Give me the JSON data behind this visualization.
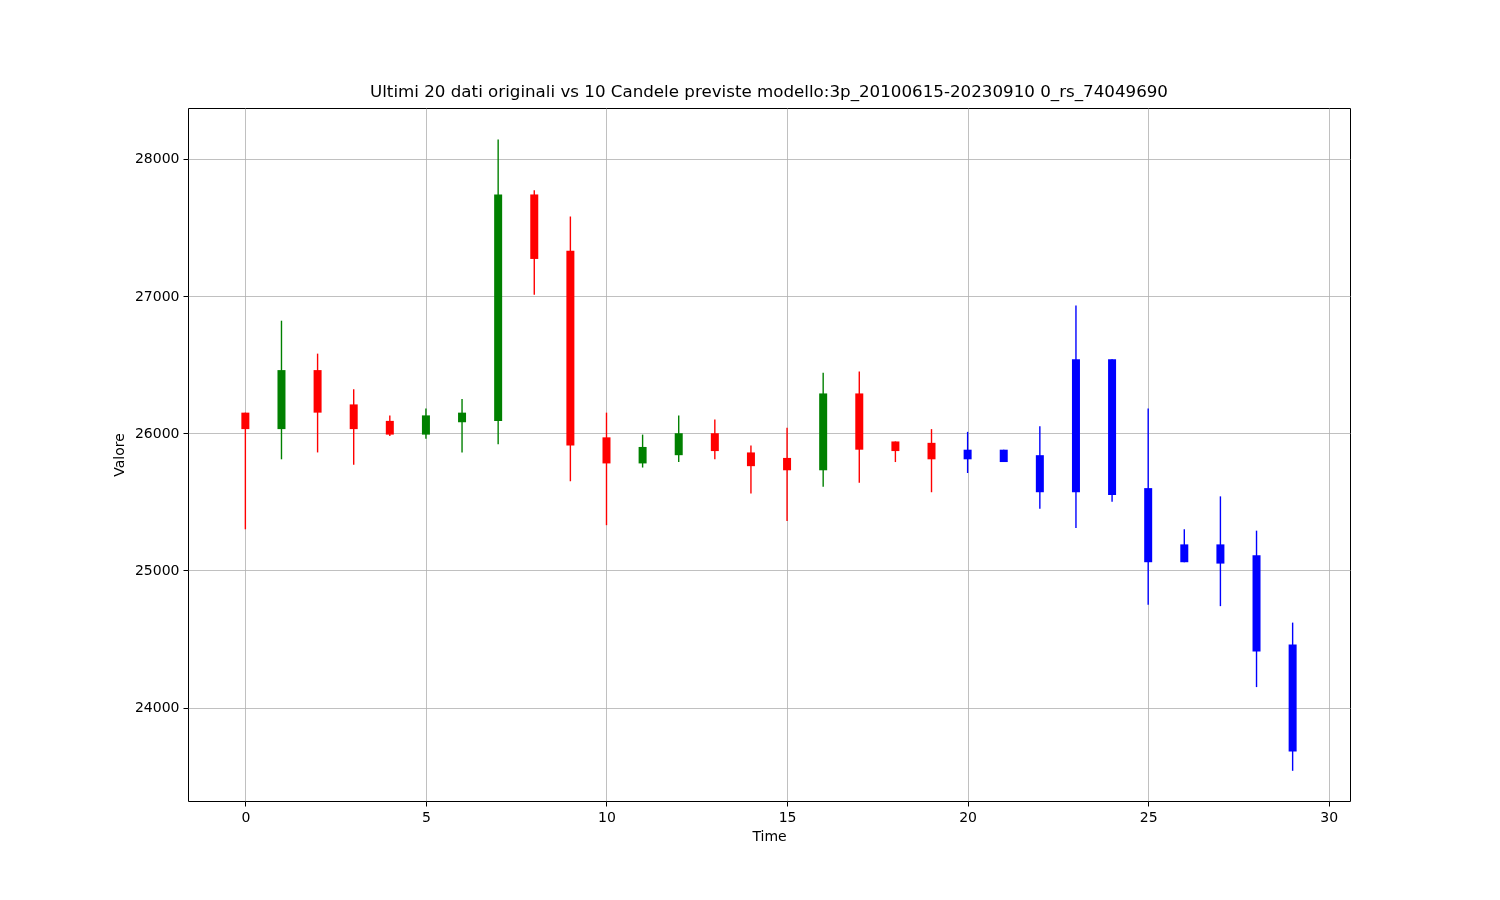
{
  "chart_data": {
    "type": "candlestick",
    "title": "Ultimi 20 dati originali vs 10 Candele previste modello:3p_20100615-20230910 0_rs_74049690",
    "xlabel": "Time",
    "ylabel": "Valore",
    "x": [
      0,
      1,
      2,
      3,
      4,
      5,
      6,
      7,
      8,
      9,
      10,
      11,
      12,
      13,
      14,
      15,
      16,
      17,
      18,
      19,
      20,
      21,
      22,
      23,
      24,
      25,
      26,
      27,
      28,
      29
    ],
    "ohlc": [
      [
        26150,
        26150,
        25300,
        26030
      ],
      [
        26030,
        26820,
        25810,
        26460
      ],
      [
        26460,
        26580,
        25860,
        26150
      ],
      [
        26210,
        26320,
        25770,
        26030
      ],
      [
        26090,
        26130,
        25980,
        25990
      ],
      [
        25990,
        26180,
        25960,
        26130
      ],
      [
        26080,
        26250,
        25860,
        26150
      ],
      [
        26090,
        28140,
        25920,
        27740
      ],
      [
        27740,
        27770,
        27010,
        27270
      ],
      [
        27330,
        27580,
        25650,
        25910
      ],
      [
        25970,
        26150,
        25330,
        25780
      ],
      [
        25780,
        25990,
        25750,
        25900
      ],
      [
        25840,
        26130,
        25790,
        26000
      ],
      [
        26000,
        26100,
        25810,
        25870
      ],
      [
        25860,
        25910,
        25560,
        25760
      ],
      [
        25820,
        26040,
        25360,
        25730
      ],
      [
        25730,
        26440,
        25610,
        26290
      ],
      [
        26290,
        26450,
        25640,
        25880
      ],
      [
        25940,
        25940,
        25790,
        25870
      ],
      [
        25930,
        26030,
        25570,
        25810
      ],
      [
        25810,
        26010,
        25710,
        25880
      ],
      [
        25880,
        25880,
        25790,
        25790
      ],
      [
        25840,
        26050,
        25450,
        25570
      ],
      [
        25570,
        26930,
        25310,
        26540
      ],
      [
        26540,
        26540,
        25500,
        25550
      ],
      [
        25600,
        26180,
        24750,
        25060
      ],
      [
        25060,
        25300,
        25060,
        25190
      ],
      [
        25190,
        25540,
        24740,
        25050
      ],
      [
        25110,
        25290,
        24150,
        24410
      ],
      [
        24460,
        24620,
        23540,
        23680
      ]
    ],
    "colors": [
      "#ff0000",
      "#008000",
      "#ff0000",
      "#ff0000",
      "#ff0000",
      "#008000",
      "#008000",
      "#008000",
      "#ff0000",
      "#ff0000",
      "#ff0000",
      "#008000",
      "#008000",
      "#ff0000",
      "#ff0000",
      "#ff0000",
      "#008000",
      "#ff0000",
      "#ff0000",
      "#ff0000",
      "#0000ff",
      "#0000ff",
      "#0000ff",
      "#0000ff",
      "#0000ff",
      "#0000ff",
      "#0000ff",
      "#0000ff",
      "#0000ff",
      "#0000ff"
    ],
    "xlim": [
      -1.45,
      30.45
    ],
    "ylim": [
      23320,
      28370
    ],
    "xticks": [
      0,
      5,
      10,
      15,
      20,
      25,
      30
    ],
    "yticks": [
      24000,
      25000,
      26000,
      27000,
      28000
    ],
    "grid": true
  }
}
